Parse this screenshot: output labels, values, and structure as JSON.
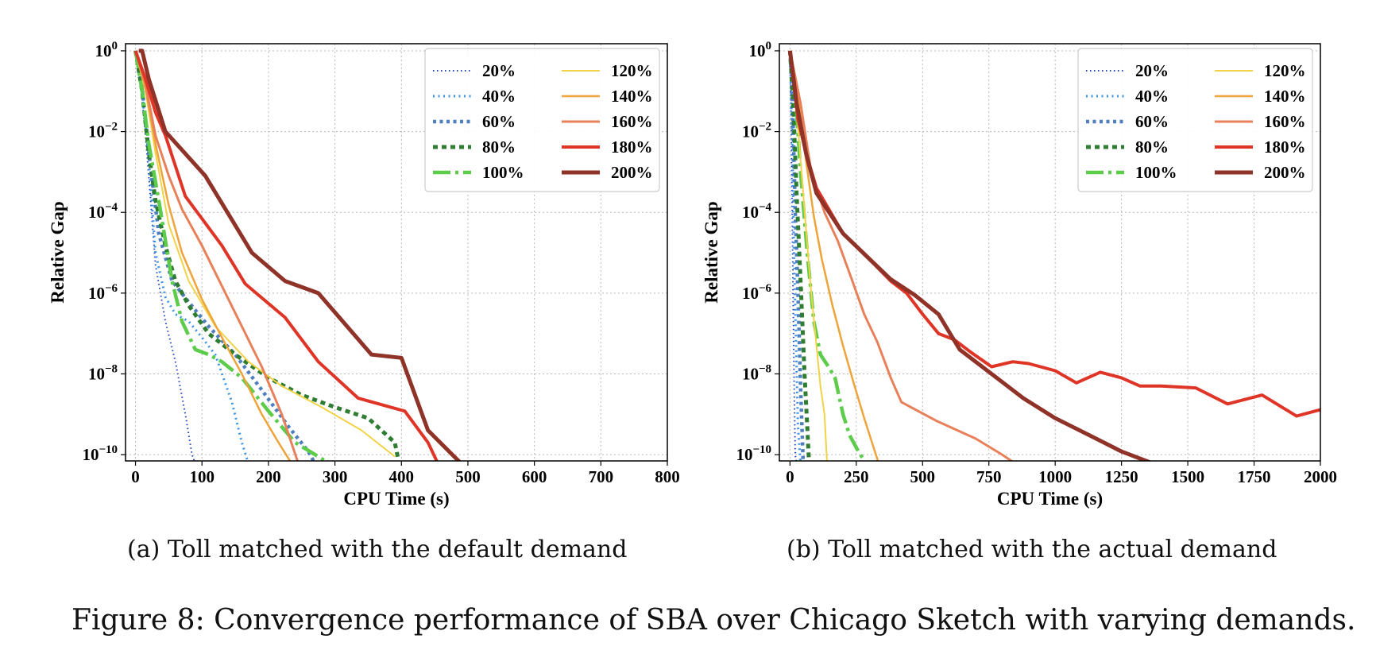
{
  "figure": {
    "caption": "Figure 8: Convergence performance of SBA over Chicago Sketch with varying demands."
  },
  "styles": [
    {
      "name": "20%",
      "color": "#1f3fbf",
      "width": 2.0,
      "dash": "1.5,3.5"
    },
    {
      "name": "40%",
      "color": "#3a95e6",
      "width": 3.0,
      "dash": "2,4.5"
    },
    {
      "name": "60%",
      "color": "#4f7fbf",
      "width": 4.5,
      "dash": "4,4.5"
    },
    {
      "name": "80%",
      "color": "#2f7d32",
      "width": 5.0,
      "dash": "6,5"
    },
    {
      "name": "100%",
      "color": "#5ccc4a",
      "width": 4.5,
      "dash": "22,6,4,6"
    },
    {
      "name": "120%",
      "color": "#f2d246",
      "width": 2.0,
      "dash": ""
    },
    {
      "name": "140%",
      "color": "#eea43a",
      "width": 2.5,
      "dash": ""
    },
    {
      "name": "160%",
      "color": "#e8805a",
      "width": 3.0,
      "dash": ""
    },
    {
      "name": "180%",
      "color": "#df3527",
      "width": 4.0,
      "dash": ""
    },
    {
      "name": "200%",
      "color": "#8f3228",
      "width": 5.0,
      "dash": ""
    }
  ],
  "chart_data": [
    {
      "type": "line",
      "caption_label": "(a)",
      "caption_text": "Toll matched with the default demand",
      "xlabel": "CPU Time (s)",
      "ylabel": "Relative Gap",
      "xlim": [
        -15,
        800
      ],
      "ylim": [
        7e-11,
        1.5
      ],
      "yscale": "log",
      "xticks": [
        0,
        100,
        200,
        300,
        400,
        500,
        600,
        700,
        800
      ],
      "xtick_labels": [
        "0",
        "100",
        "200",
        "300",
        "400",
        "500",
        "600",
        "700",
        "800"
      ],
      "yticks": [
        1,
        0.01,
        0.0001,
        1e-06,
        1e-08,
        1e-10
      ],
      "ytick_labels": [
        {
          "base": "10",
          "exp": "0"
        },
        {
          "base": "10",
          "exp": "−2"
        },
        {
          "base": "10",
          "exp": "−4"
        },
        {
          "base": "10",
          "exp": "−6"
        },
        {
          "base": "10",
          "exp": "−8"
        },
        {
          "base": "10",
          "exp": "−10"
        }
      ],
      "grid": true,
      "legend": {
        "position": "top-right",
        "columns": 2
      },
      "series": [
        {
          "name": "20%",
          "x": [
            0,
            8,
            15,
            22,
            30,
            45,
            60,
            75,
            85,
            90
          ],
          "y": [
            1,
            0.15,
            0.008,
            0.0003,
            5e-06,
            2e-07,
            2e-08,
            1e-09,
            1e-10,
            6e-11
          ]
        },
        {
          "name": "40%",
          "x": [
            0,
            10,
            20,
            30,
            45,
            60,
            80,
            100,
            120,
            145,
            160,
            170
          ],
          "y": [
            1,
            0.1,
            0.002,
            1e-05,
            8e-07,
            3e-07,
            2e-07,
            8e-08,
            3e-08,
            2e-09,
            2e-10,
            6e-11
          ]
        },
        {
          "name": "60%",
          "x": [
            0,
            10,
            20,
            35,
            55,
            80,
            110,
            150,
            190,
            230,
            260,
            270
          ],
          "y": [
            1,
            0.12,
            0.003,
            3e-05,
            2e-06,
            6e-07,
            1.5e-07,
            3e-08,
            4e-09,
            5e-10,
            1.2e-10,
            6e-11
          ]
        },
        {
          "name": "80%",
          "x": [
            0,
            10,
            20,
            30,
            45,
            60,
            80,
            110,
            150,
            200,
            250,
            300,
            350,
            390,
            395
          ],
          "y": [
            1,
            0.1,
            0.003,
            0.0002,
            1.5e-05,
            2e-06,
            5e-07,
            1e-07,
            3e-08,
            8e-09,
            3e-09,
            1.5e-09,
            8e-10,
            2e-10,
            8e-11
          ]
        },
        {
          "name": "100%",
          "x": [
            0,
            10,
            20,
            35,
            55,
            70,
            90,
            110,
            130,
            160,
            200,
            240,
            280,
            290
          ],
          "y": [
            1,
            0.1,
            0.005,
            0.0002,
            2e-06,
            2e-07,
            4e-08,
            3e-08,
            2e-08,
            8e-09,
            1.2e-09,
            2e-10,
            8e-11,
            6e-11
          ]
        },
        {
          "name": "120%",
          "x": [
            0,
            15,
            30,
            50,
            80,
            120,
            170,
            220,
            280,
            340,
            390
          ],
          "y": [
            1,
            0.1,
            0.003,
            5e-05,
            2e-06,
            1.5e-07,
            2e-08,
            5e-09,
            1.5e-09,
            4e-10,
            9e-11
          ]
        },
        {
          "name": "140%",
          "x": [
            0,
            15,
            30,
            50,
            70,
            100,
            130,
            160,
            190,
            215,
            235
          ],
          "y": [
            1,
            0.12,
            0.005,
            0.00015,
            1e-05,
            7e-07,
            8e-08,
            1e-08,
            1e-09,
            2e-10,
            6e-11
          ]
        },
        {
          "name": "160%",
          "x": [
            0,
            15,
            30,
            50,
            70,
            100,
            130,
            160,
            190,
            220,
            245
          ],
          "y": [
            1,
            0.15,
            0.008,
            0.0008,
            0.00012,
            1.5e-05,
            1.5e-06,
            1.5e-07,
            1.5e-08,
            1e-09,
            6e-11
          ]
        },
        {
          "name": "180%",
          "x": [
            0,
            15,
            30,
            45,
            75,
            100,
            130,
            165,
            225,
            275,
            335,
            405,
            440,
            455
          ],
          "y": [
            1,
            0.2,
            0.03,
            0.008,
            0.00025,
            7e-05,
            1.5e-05,
            1.7e-06,
            2.5e-07,
            2e-08,
            2.5e-09,
            1.2e-09,
            2e-10,
            6e-11
          ]
        },
        {
          "name": "200%",
          "x": [
            5,
            10,
            20,
            45,
            105,
            175,
            225,
            275,
            355,
            400,
            440,
            490
          ],
          "y": [
            1,
            1,
            0.2,
            0.01,
            0.0008,
            1e-05,
            2e-06,
            1e-06,
            3e-08,
            2.5e-08,
            4e-10,
            6e-11
          ]
        }
      ]
    },
    {
      "type": "line",
      "caption_label": "(b)",
      "caption_text": "Toll matched with the actual demand",
      "xlabel": "CPU Time (s)",
      "ylabel": "Relative Gap",
      "xlim": [
        -40,
        2000
      ],
      "ylim": [
        7e-11,
        1.5
      ],
      "yscale": "log",
      "xticks": [
        0,
        250,
        500,
        750,
        1000,
        1250,
        1500,
        1750,
        2000
      ],
      "xtick_labels": [
        "0",
        "250",
        "500",
        "750",
        "1000",
        "1250",
        "1500",
        "1750",
        "2000"
      ],
      "yticks": [
        1,
        0.01,
        0.0001,
        1e-06,
        1e-08,
        1e-10
      ],
      "ytick_labels": [
        {
          "base": "10",
          "exp": "0"
        },
        {
          "base": "10",
          "exp": "−2"
        },
        {
          "base": "10",
          "exp": "−4"
        },
        {
          "base": "10",
          "exp": "−6"
        },
        {
          "base": "10",
          "exp": "−8"
        },
        {
          "base": "10",
          "exp": "−10"
        }
      ],
      "grid": true,
      "legend": {
        "position": "top-right",
        "columns": 2
      },
      "series": [
        {
          "name": "20%",
          "x": [
            0,
            5,
            10,
            15,
            20,
            25
          ],
          "y": [
            1,
            0.01,
            1e-05,
            1e-08,
            1e-10,
            6e-11
          ]
        },
        {
          "name": "40%",
          "x": [
            0,
            8,
            15,
            22,
            30,
            40
          ],
          "y": [
            1,
            0.01,
            1e-05,
            1e-07,
            5e-10,
            6e-11
          ]
        },
        {
          "name": "60%",
          "x": [
            0,
            10,
            20,
            30,
            40,
            50
          ],
          "y": [
            1,
            0.05,
            0.0001,
            1e-06,
            5e-09,
            6e-11
          ]
        },
        {
          "name": "80%",
          "x": [
            0,
            12,
            25,
            40,
            55,
            65,
            72
          ],
          "y": [
            1,
            0.05,
            0.0003,
            2e-06,
            1e-08,
            5e-10,
            6e-11
          ]
        },
        {
          "name": "100%",
          "x": [
            0,
            20,
            40,
            65,
            90,
            115,
            145,
            170,
            200,
            225,
            255,
            275
          ],
          "y": [
            1,
            0.1,
            0.001,
            1e-05,
            2e-07,
            3e-08,
            1.5e-08,
            8e-09,
            1e-09,
            3e-10,
            1.3e-10,
            8e-11
          ]
        },
        {
          "name": "120%",
          "x": [
            0,
            20,
            40,
            60,
            80,
            100,
            115,
            130,
            140
          ],
          "y": [
            1,
            0.1,
            0.002,
            4e-05,
            1e-06,
            5e-08,
            5e-09,
            1e-09,
            6e-11
          ]
        },
        {
          "name": "140%",
          "x": [
            0,
            30,
            60,
            90,
            120,
            160,
            200,
            240,
            280,
            320,
            335
          ],
          "y": [
            1,
            0.1,
            0.002,
            8e-05,
            7e-06,
            5e-07,
            5e-08,
            6e-09,
            8e-10,
            1.2e-10,
            6e-11
          ]
        },
        {
          "name": "160%",
          "x": [
            0,
            40,
            80,
            130,
            180,
            230,
            280,
            330,
            380,
            420,
            550,
            700,
            800,
            850
          ],
          "y": [
            1,
            0.05,
            0.001,
            0.0001,
            2e-05,
            2.5e-06,
            3e-07,
            6e-08,
            8e-09,
            2e-09,
            7e-10,
            2.5e-10,
            1e-10,
            6e-11
          ]
        },
        {
          "name": "180%",
          "x": [
            0,
            30,
            60,
            100,
            200,
            320,
            380,
            440,
            500,
            560,
            620,
            680,
            760,
            840,
            900,
            1000,
            1080,
            1170,
            1250,
            1320,
            1400,
            1530,
            1650,
            1780,
            1910,
            2000
          ],
          "y": [
            1,
            0.02,
            0.003,
            0.0004,
            3e-05,
            5e-06,
            2e-06,
            1e-06,
            3e-07,
            1e-07,
            7e-08,
            3.5e-08,
            1.5e-08,
            2e-08,
            1.8e-08,
            1.2e-08,
            6e-09,
            1.1e-08,
            8e-09,
            5e-09,
            5e-09,
            4.5e-09,
            1.8e-09,
            3e-09,
            9e-10,
            1.3e-09
          ]
        },
        {
          "name": "200%",
          "x": [
            0,
            25,
            60,
            100,
            200,
            300,
            380,
            470,
            560,
            640,
            760,
            880,
            1000,
            1130,
            1250,
            1370,
            1400
          ],
          "y": [
            1,
            0.05,
            0.003,
            0.0003,
            3e-05,
            7e-06,
            2.2e-06,
            9e-07,
            3e-07,
            4e-08,
            1e-08,
            2.5e-09,
            8e-10,
            3e-10,
            1.2e-10,
            6e-11,
            5e-11
          ]
        }
      ]
    }
  ]
}
